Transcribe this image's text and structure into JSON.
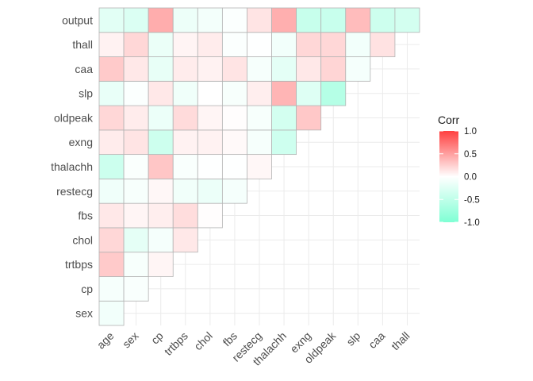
{
  "chart_data": {
    "type": "heatmap",
    "title": "",
    "xlabel": "",
    "ylabel": "",
    "x_categories": [
      "age",
      "sex",
      "cp",
      "trtbps",
      "chol",
      "fbs",
      "restecg",
      "thalachh",
      "exng",
      "oldpeak",
      "slp",
      "caa",
      "thall"
    ],
    "y_categories": [
      "sex",
      "cp",
      "trtbps",
      "chol",
      "fbs",
      "restecg",
      "thalachh",
      "exng",
      "oldpeak",
      "slp",
      "caa",
      "thall",
      "output"
    ],
    "cells": [
      {
        "x": "age",
        "y": "sex",
        "value": -0.1
      },
      {
        "x": "age",
        "y": "cp",
        "value": -0.07
      },
      {
        "x": "sex",
        "y": "cp",
        "value": -0.05
      },
      {
        "x": "age",
        "y": "trtbps",
        "value": 0.28
      },
      {
        "x": "sex",
        "y": "trtbps",
        "value": -0.06
      },
      {
        "x": "cp",
        "y": "trtbps",
        "value": 0.05
      },
      {
        "x": "age",
        "y": "chol",
        "value": 0.21
      },
      {
        "x": "sex",
        "y": "chol",
        "value": -0.2
      },
      {
        "x": "cp",
        "y": "chol",
        "value": -0.08
      },
      {
        "x": "trtbps",
        "y": "chol",
        "value": 0.12
      },
      {
        "x": "age",
        "y": "fbs",
        "value": 0.12
      },
      {
        "x": "sex",
        "y": "fbs",
        "value": 0.05
      },
      {
        "x": "cp",
        "y": "fbs",
        "value": 0.09
      },
      {
        "x": "trtbps",
        "y": "fbs",
        "value": 0.18
      },
      {
        "x": "chol",
        "y": "fbs",
        "value": 0.01
      },
      {
        "x": "age",
        "y": "restecg",
        "value": -0.12
      },
      {
        "x": "sex",
        "y": "restecg",
        "value": -0.06
      },
      {
        "x": "cp",
        "y": "restecg",
        "value": 0.04
      },
      {
        "x": "trtbps",
        "y": "restecg",
        "value": -0.11
      },
      {
        "x": "chol",
        "y": "restecg",
        "value": -0.15
      },
      {
        "x": "fbs",
        "y": "restecg",
        "value": -0.08
      },
      {
        "x": "age",
        "y": "thalachh",
        "value": -0.4
      },
      {
        "x": "sex",
        "y": "thalachh",
        "value": -0.04
      },
      {
        "x": "cp",
        "y": "thalachh",
        "value": 0.3
      },
      {
        "x": "trtbps",
        "y": "thalachh",
        "value": -0.05
      },
      {
        "x": "chol",
        "y": "thalachh",
        "value": -0.01
      },
      {
        "x": "fbs",
        "y": "thalachh",
        "value": -0.01
      },
      {
        "x": "restecg",
        "y": "thalachh",
        "value": 0.04
      },
      {
        "x": "age",
        "y": "exng",
        "value": 0.1
      },
      {
        "x": "sex",
        "y": "exng",
        "value": 0.14
      },
      {
        "x": "cp",
        "y": "exng",
        "value": -0.39
      },
      {
        "x": "trtbps",
        "y": "exng",
        "value": 0.07
      },
      {
        "x": "chol",
        "y": "exng",
        "value": 0.07
      },
      {
        "x": "fbs",
        "y": "exng",
        "value": 0.03
      },
      {
        "x": "restecg",
        "y": "exng",
        "value": -0.07
      },
      {
        "x": "thalachh",
        "y": "exng",
        "value": -0.38
      },
      {
        "x": "age",
        "y": "oldpeak",
        "value": 0.21
      },
      {
        "x": "sex",
        "y": "oldpeak",
        "value": 0.1
      },
      {
        "x": "cp",
        "y": "oldpeak",
        "value": -0.15
      },
      {
        "x": "trtbps",
        "y": "oldpeak",
        "value": 0.19
      },
      {
        "x": "chol",
        "y": "oldpeak",
        "value": 0.05
      },
      {
        "x": "fbs",
        "y": "oldpeak",
        "value": 0.01
      },
      {
        "x": "restecg",
        "y": "oldpeak",
        "value": -0.06
      },
      {
        "x": "thalachh",
        "y": "oldpeak",
        "value": -0.34
      },
      {
        "x": "exng",
        "y": "oldpeak",
        "value": 0.29
      },
      {
        "x": "age",
        "y": "slp",
        "value": -0.17
      },
      {
        "x": "sex",
        "y": "slp",
        "value": -0.03
      },
      {
        "x": "cp",
        "y": "slp",
        "value": 0.12
      },
      {
        "x": "trtbps",
        "y": "slp",
        "value": -0.12
      },
      {
        "x": "chol",
        "y": "slp",
        "value": 0.0
      },
      {
        "x": "fbs",
        "y": "slp",
        "value": -0.06
      },
      {
        "x": "restecg",
        "y": "slp",
        "value": 0.09
      },
      {
        "x": "thalachh",
        "y": "slp",
        "value": 0.39
      },
      {
        "x": "exng",
        "y": "slp",
        "value": -0.26
      },
      {
        "x": "oldpeak",
        "y": "slp",
        "value": -0.58
      },
      {
        "x": "age",
        "y": "caa",
        "value": 0.28
      },
      {
        "x": "sex",
        "y": "caa",
        "value": 0.12
      },
      {
        "x": "cp",
        "y": "caa",
        "value": -0.18
      },
      {
        "x": "trtbps",
        "y": "caa",
        "value": 0.1
      },
      {
        "x": "chol",
        "y": "caa",
        "value": 0.07
      },
      {
        "x": "fbs",
        "y": "caa",
        "value": 0.14
      },
      {
        "x": "restecg",
        "y": "caa",
        "value": -0.07
      },
      {
        "x": "thalachh",
        "y": "caa",
        "value": -0.21
      },
      {
        "x": "exng",
        "y": "caa",
        "value": 0.12
      },
      {
        "x": "oldpeak",
        "y": "caa",
        "value": 0.22
      },
      {
        "x": "slp",
        "y": "caa",
        "value": -0.08
      },
      {
        "x": "age",
        "y": "thall",
        "value": 0.07
      },
      {
        "x": "sex",
        "y": "thall",
        "value": 0.21
      },
      {
        "x": "cp",
        "y": "thall",
        "value": -0.16
      },
      {
        "x": "trtbps",
        "y": "thall",
        "value": 0.06
      },
      {
        "x": "chol",
        "y": "thall",
        "value": 0.1
      },
      {
        "x": "fbs",
        "y": "thall",
        "value": -0.03
      },
      {
        "x": "restecg",
        "y": "thall",
        "value": -0.01
      },
      {
        "x": "thalachh",
        "y": "thall",
        "value": -0.1
      },
      {
        "x": "exng",
        "y": "thall",
        "value": 0.21
      },
      {
        "x": "oldpeak",
        "y": "thall",
        "value": 0.21
      },
      {
        "x": "slp",
        "y": "thall",
        "value": -0.1
      },
      {
        "x": "caa",
        "y": "thall",
        "value": 0.15
      },
      {
        "x": "age",
        "y": "output",
        "value": -0.23
      },
      {
        "x": "sex",
        "y": "output",
        "value": -0.28
      },
      {
        "x": "cp",
        "y": "output",
        "value": 0.43
      },
      {
        "x": "trtbps",
        "y": "output",
        "value": -0.14
      },
      {
        "x": "chol",
        "y": "output",
        "value": -0.09
      },
      {
        "x": "fbs",
        "y": "output",
        "value": -0.03
      },
      {
        "x": "restecg",
        "y": "output",
        "value": 0.14
      },
      {
        "x": "thalachh",
        "y": "output",
        "value": 0.42
      },
      {
        "x": "exng",
        "y": "output",
        "value": -0.44
      },
      {
        "x": "oldpeak",
        "y": "output",
        "value": -0.43
      },
      {
        "x": "slp",
        "y": "output",
        "value": 0.35
      },
      {
        "x": "caa",
        "y": "output",
        "value": -0.39
      },
      {
        "x": "thall",
        "y": "output",
        "value": -0.34
      }
    ],
    "color_scale": {
      "low": "#7FFFD4",
      "mid": "#FFFFFF",
      "high": "#FF4040",
      "range": [
        -1,
        1
      ]
    },
    "legend": {
      "title": "Corr",
      "placement": "right",
      "tick_values": [
        1.0,
        0.5,
        0.0,
        -0.5,
        -1.0
      ],
      "tick_labels": [
        "1.0",
        "0.5",
        "0.0",
        "-0.5",
        "-1.0"
      ]
    },
    "grid": true
  }
}
